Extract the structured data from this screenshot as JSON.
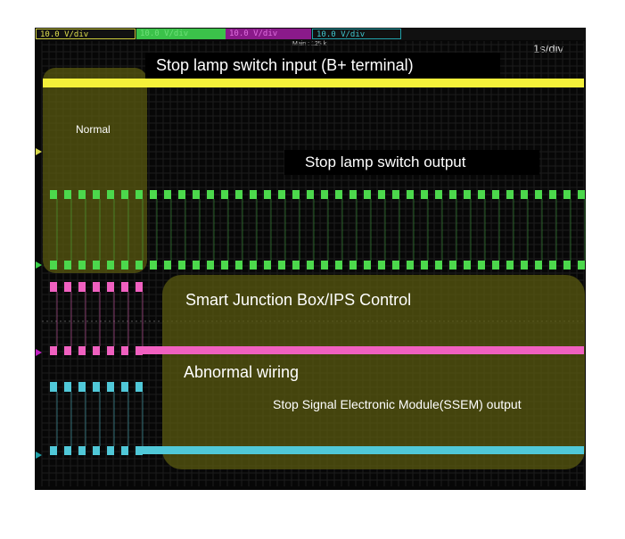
{
  "channels": [
    {
      "id": "1",
      "scale": "10.0 V/div",
      "color": "#d8d84a"
    },
    {
      "id": "2",
      "scale": "10.0 V/div",
      "color": "#3bd04a"
    },
    {
      "id": "3",
      "scale": "10.0 V/div",
      "color": "#c020c0"
    },
    {
      "id": "4",
      "scale": "10.0 V/div",
      "color": "#20a0a8"
    }
  ],
  "header": {
    "main": "Main : 125 k",
    "timebase": "1s/div"
  },
  "annotations": {
    "ch1": "Stop lamp switch input (B+ terminal)",
    "normal": "Normal",
    "ch2": "Stop lamp switch output",
    "sjb": "Smart Junction Box/IPS Control",
    "abnormal": "Abnormal wiring",
    "ssem": "Stop Signal Electronic Module(SSEM) output"
  },
  "chart_data": {
    "type": "line",
    "x_scale": "1s/div",
    "y_scale": "10.0 V/div",
    "grid": true,
    "traces": [
      {
        "channel": "1",
        "color": "#f4f03a",
        "shape": "constant high"
      },
      {
        "channel": "2",
        "color": "#4cd84c",
        "shape": "pulse train throughout"
      },
      {
        "channel": "3",
        "color": "#f060c0",
        "shape": "pulses then constant low"
      },
      {
        "channel": "4",
        "color": "#50c8d8",
        "shape": "pulses then constant low"
      }
    ]
  }
}
